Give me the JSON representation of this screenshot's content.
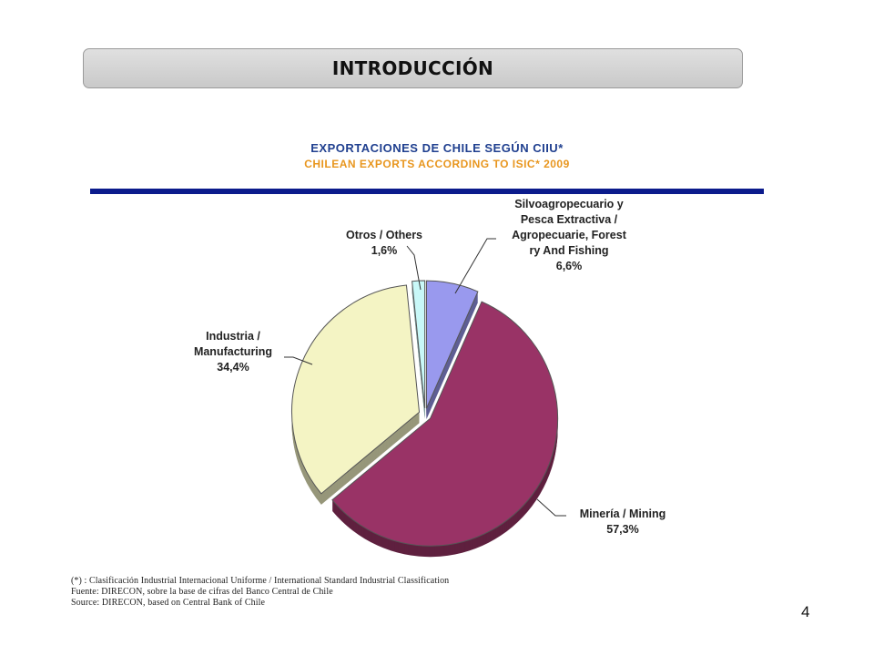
{
  "header": {
    "title": "INTRODUCCIÓN"
  },
  "chart_data": {
    "type": "pie",
    "title": "EXPORTACIONES DE CHILE SEGÚN CIIU*",
    "subtitle": "CHILEAN EXPORTS ACCORDING TO ISIC* 2009",
    "slices": [
      {
        "label_lines": [
          "Silvoagropecuario y",
          "Pesca Extractiva /",
          "Agropecuarie, Forest",
          "ry And Fishing"
        ],
        "value_label": "6,6%",
        "value": 6.6,
        "color": "#9999ee"
      },
      {
        "label_lines": [
          "Minería / Mining"
        ],
        "value_label": "57,3%",
        "value": 57.3,
        "color": "#993366"
      },
      {
        "label_lines": [
          "Industria /",
          "Manufacturing"
        ],
        "value_label": "34,4%",
        "value": 34.4,
        "color": "#f4f4c4"
      },
      {
        "label_lines": [
          "Otros / Others"
        ],
        "value_label": "1,6%",
        "value": 1.6,
        "color": "#c8f8f8"
      }
    ]
  },
  "footnotes": [
    "(*) : Clasificación Industrial Internacional Uniforme / International Standard Industrial Classification",
    "Fuente: DIRECON, sobre la base de cifras del Banco Central de Chile",
    "Source: DIRECON, based on Central Bank of Chile"
  ],
  "page_number": "4"
}
